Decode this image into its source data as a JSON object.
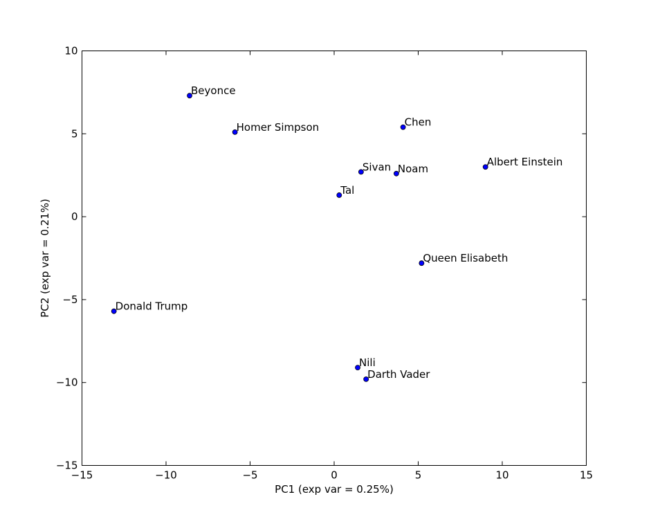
{
  "chart_data": {
    "type": "scatter",
    "xlabel": "PC1 (exp var = 0.25%)",
    "ylabel": "PC2 (exp var = 0.21%)",
    "labels": [
      "Beyonce",
      "Homer Simpson",
      "Chen",
      "Sivan",
      "Noam",
      "Albert Einstein",
      "Tal",
      "Queen Elisabeth",
      "Donald Trump",
      "Nili",
      "Darth Vader"
    ],
    "x": [
      -8.6,
      -5.9,
      4.1,
      1.6,
      3.7,
      9.0,
      0.3,
      5.2,
      -13.1,
      1.4,
      1.9
    ],
    "values": [
      7.3,
      5.1,
      5.4,
      2.7,
      2.6,
      3.0,
      1.3,
      -2.8,
      -5.7,
      -9.1,
      -9.8
    ],
    "color": "#0000ff",
    "xlim": [
      -15,
      15
    ],
    "ylim": [
      -15,
      10
    ],
    "xticks": [
      {
        "value": -15,
        "label": "−15"
      },
      {
        "value": -10,
        "label": "−10"
      },
      {
        "value": -5,
        "label": "−5"
      },
      0,
      5,
      10,
      15
    ],
    "yticks": [
      {
        "value": -15,
        "label": "−15"
      },
      {
        "value": -10,
        "label": "−10"
      },
      {
        "value": -5,
        "label": "−5"
      },
      0,
      5,
      10
    ]
  }
}
